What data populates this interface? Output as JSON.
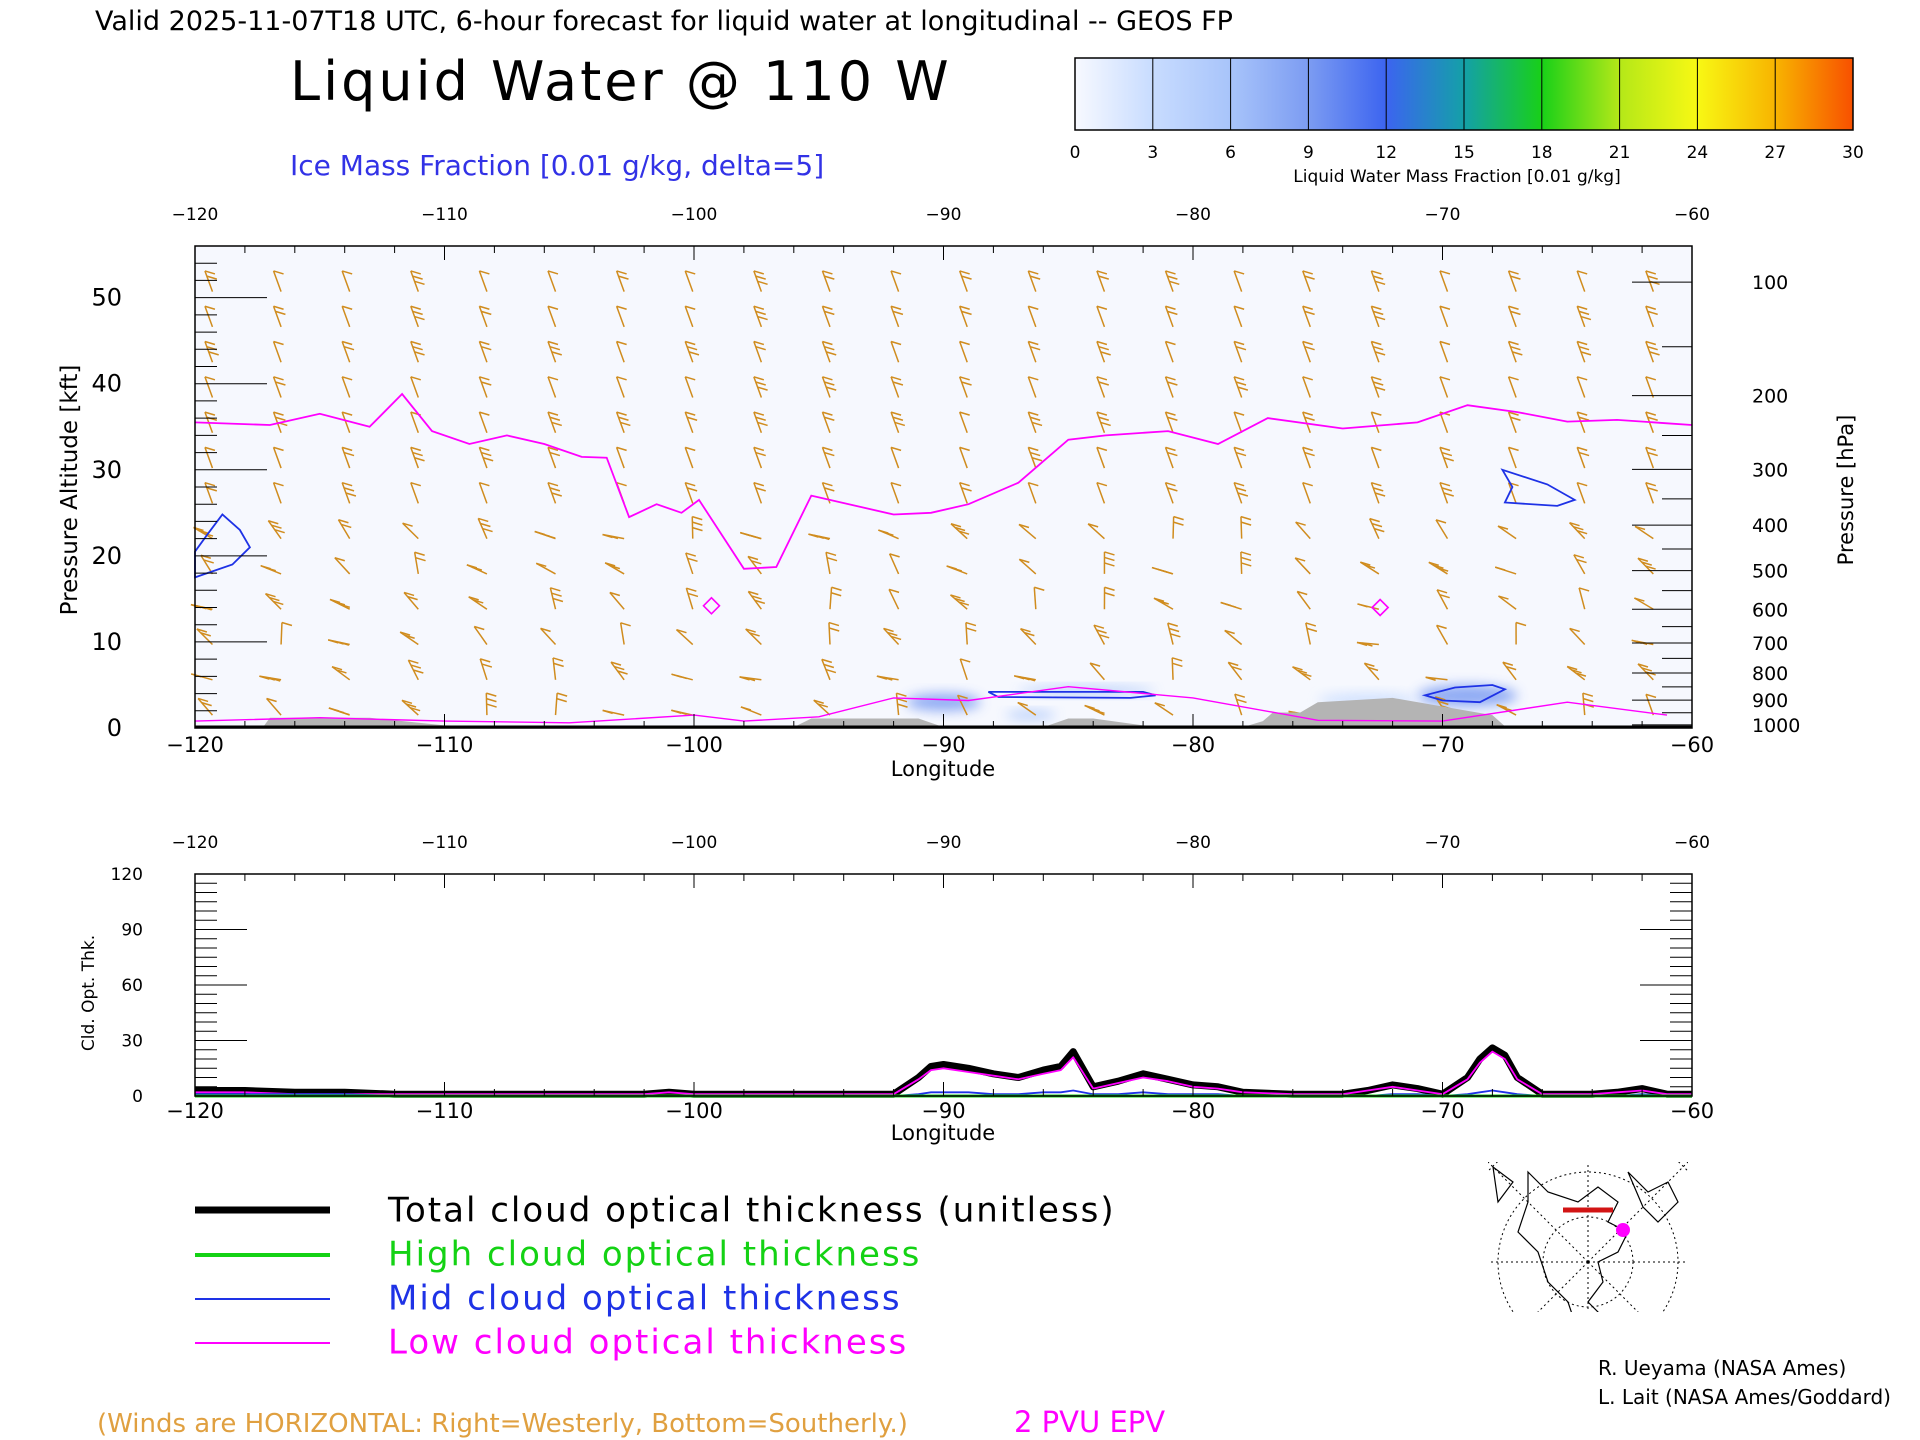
{
  "header": {
    "valid_line": "Valid 2025-11-07T18 UTC, 6-hour forecast for liquid water at longitudinal -- GEOS FP",
    "title": "Liquid Water @ 110 W",
    "ice_label": "Ice Mass Fraction [0.01 g/kg, delta=5]"
  },
  "colorbar": {
    "ticks": [
      "0",
      "3",
      "6",
      "9",
      "12",
      "15",
      "18",
      "21",
      "24",
      "27",
      "30"
    ],
    "colors": [
      "#f7f9ff",
      "#c8dcff",
      "#a8c4fa",
      "#7c9cf2",
      "#3c64f0",
      "#14a0a8",
      "#18d018",
      "#b4e818",
      "#f8f814",
      "#f8b400",
      "#f85000"
    ],
    "label": "Liquid Water Mass Fraction [0.01 g/kg]"
  },
  "colors": {
    "wind_barb": "#d08c1e",
    "epv": "#ff00ff",
    "ice_contour": "#1e32e6",
    "terrain": "#b4b4b4",
    "total": "#000000",
    "high": "#14d214",
    "mid": "#1e32e6",
    "low": "#ff00ff",
    "footer_winds": "#e0a040"
  },
  "chart_data": [
    {
      "type": "heatmap",
      "title": "Liquid Water @ 110 W",
      "xlabel": "Longitude",
      "ylabel": "Pressure Altitude [kft]",
      "y2label": "Pressure [hPa]",
      "xlim": [
        -120,
        -60
      ],
      "ylim": [
        0,
        56
      ],
      "x_ticks": [
        "-120",
        "-110",
        "-100",
        "-90",
        "-80",
        "-70",
        "-60"
      ],
      "y_ticks": [
        "0",
        "10",
        "20",
        "30",
        "40",
        "50"
      ],
      "pressure_ticks": [
        "100",
        "200",
        "300",
        "400",
        "500",
        "600",
        "700",
        "800",
        "900",
        "1000"
      ],
      "liquid_water_patches": [
        {
          "lon": [
            -91.5,
            -88.5
          ],
          "alt": [
            2.0,
            4.0
          ],
          "value": 8
        },
        {
          "lon": [
            -87.0,
            -81.5
          ],
          "alt": [
            3.8,
            4.8
          ],
          "value": 6
        },
        {
          "lon": [
            -87.5,
            -85.5
          ],
          "alt": [
            1.0,
            2.0
          ],
          "value": 7
        },
        {
          "lon": [
            -71.0,
            -67.0
          ],
          "alt": [
            2.5,
            5.0
          ],
          "value": 9
        },
        {
          "lon": [
            -75.0,
            -71.0
          ],
          "alt": [
            2.5,
            4.0
          ],
          "value": 3
        }
      ],
      "epv_2pvu_line": [
        [
          -120,
          35.5
        ],
        [
          -117,
          35.2
        ],
        [
          -115,
          36.5
        ],
        [
          -113,
          35
        ],
        [
          -111.7,
          38.8
        ],
        [
          -110.5,
          34.5
        ],
        [
          -109,
          33
        ],
        [
          -107.5,
          34
        ],
        [
          -106,
          33
        ],
        [
          -104.5,
          31.5
        ],
        [
          -103.5,
          31.4
        ],
        [
          -102.6,
          24.5
        ],
        [
          -101.5,
          26
        ],
        [
          -100.5,
          25
        ],
        [
          -99.8,
          26.5
        ],
        [
          -98,
          18.5
        ],
        [
          -96.7,
          18.7
        ],
        [
          -95.3,
          27
        ],
        [
          -92,
          24.8
        ],
        [
          -90.5,
          25
        ],
        [
          -89,
          26
        ],
        [
          -87,
          28.5
        ],
        [
          -85,
          33.5
        ],
        [
          -83.5,
          34
        ],
        [
          -81,
          34.5
        ],
        [
          -79,
          33
        ],
        [
          -77,
          36
        ],
        [
          -74,
          34.8
        ],
        [
          -71,
          35.5
        ],
        [
          -69,
          37.5
        ],
        [
          -67,
          36.7
        ],
        [
          -65,
          35.6
        ],
        [
          -63,
          35.8
        ],
        [
          -61,
          35.4
        ],
        [
          -60,
          35.2
        ]
      ],
      "ice_contours": [
        [
          [
            -120,
            17.5
          ],
          [
            -118.5,
            19
          ],
          [
            -117.8,
            21
          ],
          [
            -118.2,
            23
          ],
          [
            -118.9,
            24.8
          ],
          [
            -119.5,
            22.5
          ],
          [
            -120,
            20.5
          ]
        ],
        [
          [
            -67.6,
            30
          ],
          [
            -67.2,
            28
          ],
          [
            -67.5,
            26.2
          ],
          [
            -65.4,
            25.8
          ],
          [
            -64.7,
            26.5
          ],
          [
            -65.8,
            28.3
          ]
        ],
        [
          [
            -88.2,
            4.2
          ],
          [
            -82,
            4.2
          ],
          [
            -81.5,
            3.8
          ],
          [
            -82.5,
            3.5
          ],
          [
            -87.8,
            3.6
          ]
        ],
        [
          [
            -69.5,
            4.7
          ],
          [
            -68,
            5.0
          ],
          [
            -67.5,
            4.5
          ],
          [
            -68.5,
            3.0
          ],
          [
            -70,
            3.2
          ],
          [
            -70.7,
            3.8
          ]
        ]
      ],
      "terrain_lon": [
        -120,
        -117.3,
        -117,
        -113,
        -110,
        -108,
        -106,
        -104,
        -102,
        -100,
        -98,
        -96,
        -95.3,
        -91,
        -90,
        -88,
        -86,
        -85,
        -84,
        -82,
        -80,
        -78,
        -77.2,
        -76.8,
        -75.7,
        -75,
        -72,
        -70,
        -68,
        -67.5,
        -60
      ],
      "terrain_alt": [
        0,
        0,
        1.2,
        1.2,
        0.3,
        0.2,
        0.2,
        0.2,
        0.2,
        0.1,
        0.1,
        0.1,
        1.1,
        1.1,
        0.1,
        0.1,
        0.1,
        1.1,
        1.1,
        0.3,
        0.1,
        0.1,
        0.8,
        1.8,
        1.8,
        3.0,
        3.5,
        2.5,
        1.5,
        0.2,
        0
      ]
    },
    {
      "type": "line",
      "xlabel": "Longitude",
      "ylabel": "Cld. Opt. Thk.",
      "xlim": [
        -120,
        -60
      ],
      "ylim": [
        0,
        120
      ],
      "x_ticks": [
        "-120",
        "-110",
        "-100",
        "-90",
        "-80",
        "-70",
        "-60"
      ],
      "y_ticks": [
        "0",
        "30",
        "60",
        "90",
        "120"
      ],
      "x": [
        -120,
        -118,
        -116,
        -114,
        -112,
        -110,
        -108,
        -106,
        -104,
        -102,
        -101,
        -100,
        -98,
        -96,
        -94,
        -92,
        -91,
        -90.5,
        -90,
        -89,
        -88,
        -87,
        -86,
        -85.3,
        -84.8,
        -84,
        -83,
        -82,
        -81,
        -80,
        -79,
        -78,
        -76,
        -74,
        -73,
        -72,
        -71,
        -70,
        -69,
        -68.5,
        -68,
        -67.5,
        -67,
        -66,
        -64,
        -63,
        -62,
        -61,
        -60
      ],
      "series": [
        {
          "name": "Total cloud optical thickness (unitless)",
          "color": "#000000",
          "values": [
            3,
            3,
            2,
            2,
            1,
            1,
            1,
            1,
            1,
            1,
            2,
            1,
            1,
            1,
            1,
            1,
            10,
            16,
            17,
            15,
            12,
            10,
            14,
            16,
            24,
            5,
            8,
            12,
            9,
            6,
            5,
            2,
            1,
            1,
            3,
            6,
            4,
            1,
            10,
            20,
            26,
            22,
            10,
            1,
            1,
            2,
            4,
            1,
            1
          ]
        },
        {
          "name": "High cloud optical thickness",
          "color": "#14d214",
          "values": [
            0,
            0,
            0,
            0,
            0,
            0,
            0,
            0,
            0,
            0,
            0,
            0,
            0,
            0,
            0,
            0,
            0,
            0,
            0,
            0,
            0,
            0,
            0,
            0,
            0,
            0,
            0,
            0,
            0,
            0,
            0,
            0,
            0,
            0,
            0,
            0,
            0,
            0,
            0,
            0,
            0,
            0,
            0,
            0,
            0,
            0,
            0,
            0,
            0
          ]
        },
        {
          "name": "Mid cloud optical thickness",
          "color": "#1e32e6",
          "values": [
            1,
            1,
            1,
            1,
            0,
            0,
            0,
            0,
            0,
            0,
            0,
            0,
            0,
            0,
            0,
            0,
            1,
            2,
            2,
            2,
            1,
            1,
            2,
            2,
            3,
            1,
            1,
            2,
            1,
            1,
            1,
            0,
            0,
            0,
            0,
            1,
            1,
            0,
            1,
            2,
            3,
            2,
            1,
            0,
            0,
            0,
            1,
            0,
            0
          ]
        },
        {
          "name": "Low cloud optical thickness",
          "color": "#ff00ff",
          "values": [
            2,
            2,
            1,
            1,
            1,
            1,
            1,
            1,
            1,
            1,
            2,
            1,
            1,
            1,
            1,
            1,
            9,
            14,
            15,
            13,
            11,
            9,
            12,
            14,
            21,
            4,
            7,
            10,
            8,
            5,
            4,
            2,
            1,
            1,
            3,
            5,
            3,
            1,
            9,
            18,
            24,
            20,
            9,
            1,
            1,
            2,
            3,
            1,
            1
          ]
        }
      ]
    }
  ],
  "legend": [
    {
      "label": "Total cloud optical thickness (unitless)",
      "color": "#000000",
      "width": 6
    },
    {
      "label": "High cloud optical thickness",
      "color": "#14d214",
      "width": 4
    },
    {
      "label": "Mid cloud optical thickness",
      "color": "#1e32e6",
      "width": 2
    },
    {
      "label": "Low cloud optical thickness",
      "color": "#ff00ff",
      "width": 2
    }
  ],
  "map_inset": {
    "icon": "polar-map-icon"
  },
  "credits": [
    "R. Ueyama (NASA Ames)",
    "L. Lait (NASA Ames/Goddard)"
  ],
  "footer": {
    "winds_note": "(Winds are HORIZONTAL: Right=Westerly, Bottom=Southerly.)",
    "epv_label": "2 PVU EPV"
  }
}
